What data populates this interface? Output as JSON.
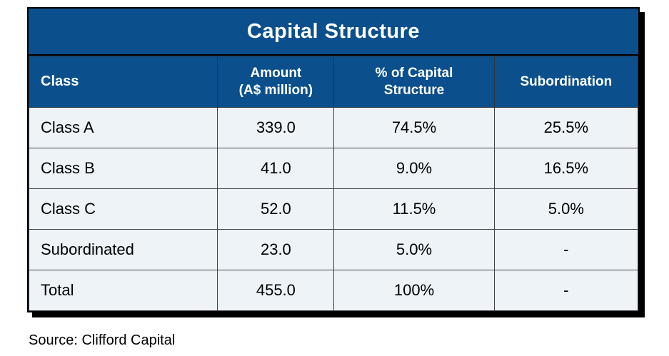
{
  "colors": {
    "header_blue": "#0b4f8c",
    "row_background": "#edf3f7",
    "outer_border": "#000000",
    "grid_line": "#3d4248",
    "header_text": "#ffffff",
    "body_text": "#000000"
  },
  "source_note": "Source: Clifford Capital",
  "chart_data": {
    "type": "table",
    "title": "Capital Structure",
    "columns": [
      "Class",
      "Amount\n(A$ million)",
      "% of Capital\nStructure",
      "Subordination"
    ],
    "rows": [
      [
        "Class A",
        "339.0",
        "74.5%",
        "25.5%"
      ],
      [
        "Class B",
        "41.0",
        "9.0%",
        "16.5%"
      ],
      [
        "Class C",
        "52.0",
        "11.5%",
        "5.0%"
      ],
      [
        "Subordinated",
        "23.0",
        "5.0%",
        "-"
      ],
      [
        "Total",
        "455.0",
        "100%",
        "-"
      ]
    ]
  }
}
